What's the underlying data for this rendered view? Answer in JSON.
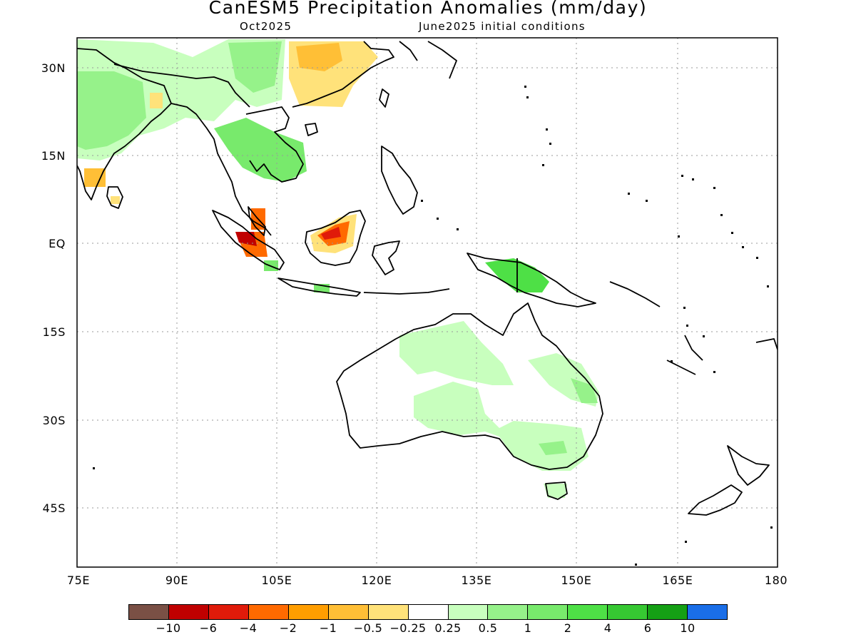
{
  "title": "CanESM5 Precipitation Anomalies (mm/day)",
  "subtitle_left": "Oct2025",
  "subtitle_right": "June2025 initial conditions",
  "axes": {
    "x_ticks": [
      "75E",
      "90E",
      "105E",
      "120E",
      "135E",
      "150E",
      "165E",
      "180"
    ],
    "y_ticks": [
      "30N",
      "15N",
      "EQ",
      "15S",
      "30S",
      "45S"
    ],
    "lon_range": [
      75,
      180
    ],
    "lat_range": [
      -55,
      35
    ],
    "grid": "dotted"
  },
  "colorbar": {
    "colors": [
      "#7a5045",
      "#c00000",
      "#e01b0a",
      "#ff6a00",
      "#ff9e00",
      "#ffbf36",
      "#ffe27a",
      "#ffffff",
      "#c8ffbe",
      "#96f28a",
      "#78ea6c",
      "#4ee046",
      "#36c832",
      "#15a015",
      "#1a6ee8"
    ],
    "labels": [
      "−10",
      "−6",
      "−4",
      "−2",
      "−1",
      "−0.5",
      "−0.25",
      "0.25",
      "0.5",
      "1",
      "2",
      "4",
      "6",
      "10"
    ]
  },
  "colors": {
    "land_outline": "#000000",
    "grid": "#999999",
    "frame": "#000000"
  },
  "map_fields": {
    "lightgreen": "#c8ffbe",
    "green": "#96f28a",
    "midgreen": "#78ea6c",
    "brightgreen": "#4ee046",
    "lightorange": "#ffe27a",
    "orange": "#ffbf36",
    "darkorange": "#ff9e00",
    "redorange": "#ff6a00",
    "red": "#e01b0a",
    "darkred": "#c00000"
  }
}
